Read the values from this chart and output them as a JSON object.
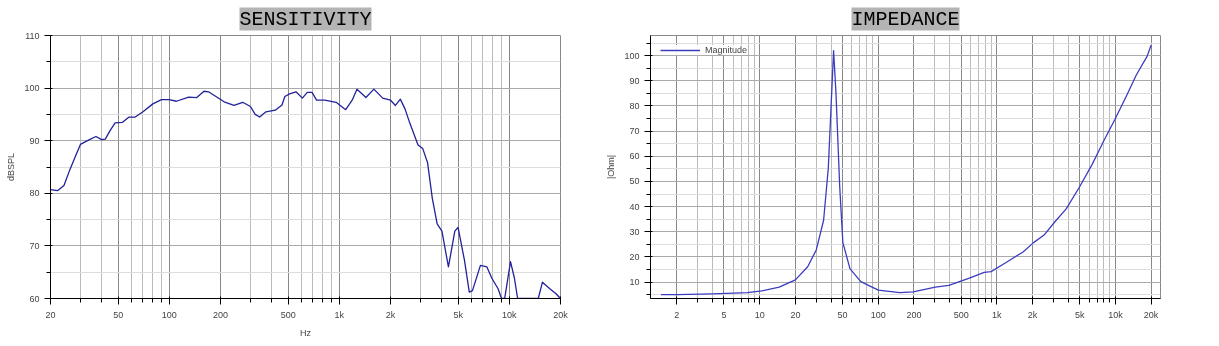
{
  "chart_data": [
    {
      "type": "line",
      "title": "SENSITIVITY",
      "xlabel": "Hz",
      "ylabel": "dBSPL",
      "log": "x",
      "grid": true,
      "legend": false,
      "xlim": [
        20,
        20000
      ],
      "ylim": [
        60,
        110
      ],
      "xticks": [
        20,
        50,
        100,
        200,
        500,
        {
          "value": 1000,
          "label": "1k"
        },
        {
          "value": 2000,
          "label": "2k"
        },
        {
          "value": 5000,
          "label": "5k"
        },
        {
          "value": 10000,
          "label": "10k"
        },
        {
          "value": 20000,
          "label": "20k"
        }
      ],
      "yticks": [
        60,
        70,
        80,
        90,
        100,
        110
      ],
      "series": [
        {
          "color": "#22229a",
          "x": [
            20,
            22,
            24,
            26,
            28,
            30,
            33,
            37,
            40,
            42,
            45,
            48,
            53,
            58,
            63,
            70,
            80,
            90,
            100,
            110,
            130,
            145,
            160,
            170,
            190,
            210,
            240,
            270,
            300,
            320,
            340,
            370,
            420,
            460,
            478,
            510,
            556,
            606,
            648,
            691,
            735,
            822,
            958,
            1090,
            1190,
            1270,
            1434,
            1597,
            1799,
            2002,
            2138,
            2284,
            2437,
            2601,
            2904,
            3096,
            3305,
            3526,
            3762,
            4014,
            4383,
            4780,
            4993,
            5445,
            5813,
            6068,
            6762,
            7381,
            7880,
            8602,
            8993,
            9390,
            10160,
            10710,
            11190,
            14800,
            15660,
            17240,
            18820,
            20000
          ],
          "values": [
            80.7,
            80.5,
            81.5,
            84.5,
            87,
            89.3,
            90,
            90.8,
            90.2,
            90.3,
            92,
            93.4,
            93.5,
            94.5,
            94.5,
            95.5,
            97,
            97.8,
            97.8,
            97.5,
            98.3,
            98.2,
            99.4,
            99.3,
            98.3,
            97.4,
            96.7,
            97.3,
            96.5,
            95,
            94.5,
            95.5,
            95.8,
            96.8,
            98.4,
            98.9,
            99.3,
            98.1,
            99.2,
            99.2,
            97.7,
            97.7,
            97.3,
            95.9,
            97.7,
            99.8,
            98.2,
            99.8,
            98.1,
            97.7,
            96.7,
            97.9,
            96,
            93.3,
            89.2,
            88.5,
            85.8,
            79,
            74.2,
            72.8,
            66,
            72.8,
            73.5,
            67.3,
            61.2,
            61.5,
            66.3,
            66,
            63.9,
            61.8,
            60,
            60,
            67,
            63.9,
            60,
            60,
            63.1,
            61.9,
            60.9,
            60
          ]
        }
      ]
    },
    {
      "type": "line",
      "title": "IMPEDANCE",
      "ylabel": "|Ohm|",
      "log": "x",
      "grid": true,
      "legend": "top left",
      "xlim": [
        1.2,
        24000
      ],
      "ylim": [
        3.5,
        108
      ],
      "xticks": [
        2,
        5,
        10,
        20,
        50,
        100,
        200,
        500,
        {
          "value": 1000,
          "label": "1k"
        },
        {
          "value": 2000,
          "label": "2k"
        },
        {
          "value": 5000,
          "label": "5k"
        },
        {
          "value": 10000,
          "label": "10k"
        },
        {
          "value": 20000,
          "label": "20k"
        }
      ],
      "yticks": [
        10,
        20,
        30,
        40,
        50,
        60,
        70,
        80,
        90,
        100
      ],
      "series": [
        {
          "name": "Magnitude",
          "color": "#3c3cc0",
          "x": [
            1.47,
            2,
            3.98,
            7.9,
            10.4,
            14.6,
            20,
            25.4,
            30,
            34.6,
            37.9,
            39.8,
            42,
            44,
            47.3,
            50.3,
            57.7,
            71.2,
            100.1,
            152,
            197,
            303,
            394,
            594,
            782,
            894,
            1178,
            1664,
            2040,
            2502,
            3076,
            3846,
            4993,
            6366,
            8023,
            9897,
            12210,
            15000,
            18490,
            20000
          ],
          "values": [
            5,
            5,
            5.3,
            5.8,
            6.5,
            8,
            10.9,
            16.1,
            22.8,
            34.6,
            55.3,
            77.5,
            102,
            85,
            48,
            25.7,
            15.4,
            10.2,
            6.8,
            5.8,
            6.1,
            8,
            8.7,
            11.7,
            13.9,
            14.2,
            17.6,
            22,
            25.7,
            28.7,
            33.9,
            39.1,
            47.9,
            56.8,
            66.4,
            74.6,
            83.4,
            92.3,
            99.7,
            104.1
          ]
        }
      ]
    }
  ]
}
